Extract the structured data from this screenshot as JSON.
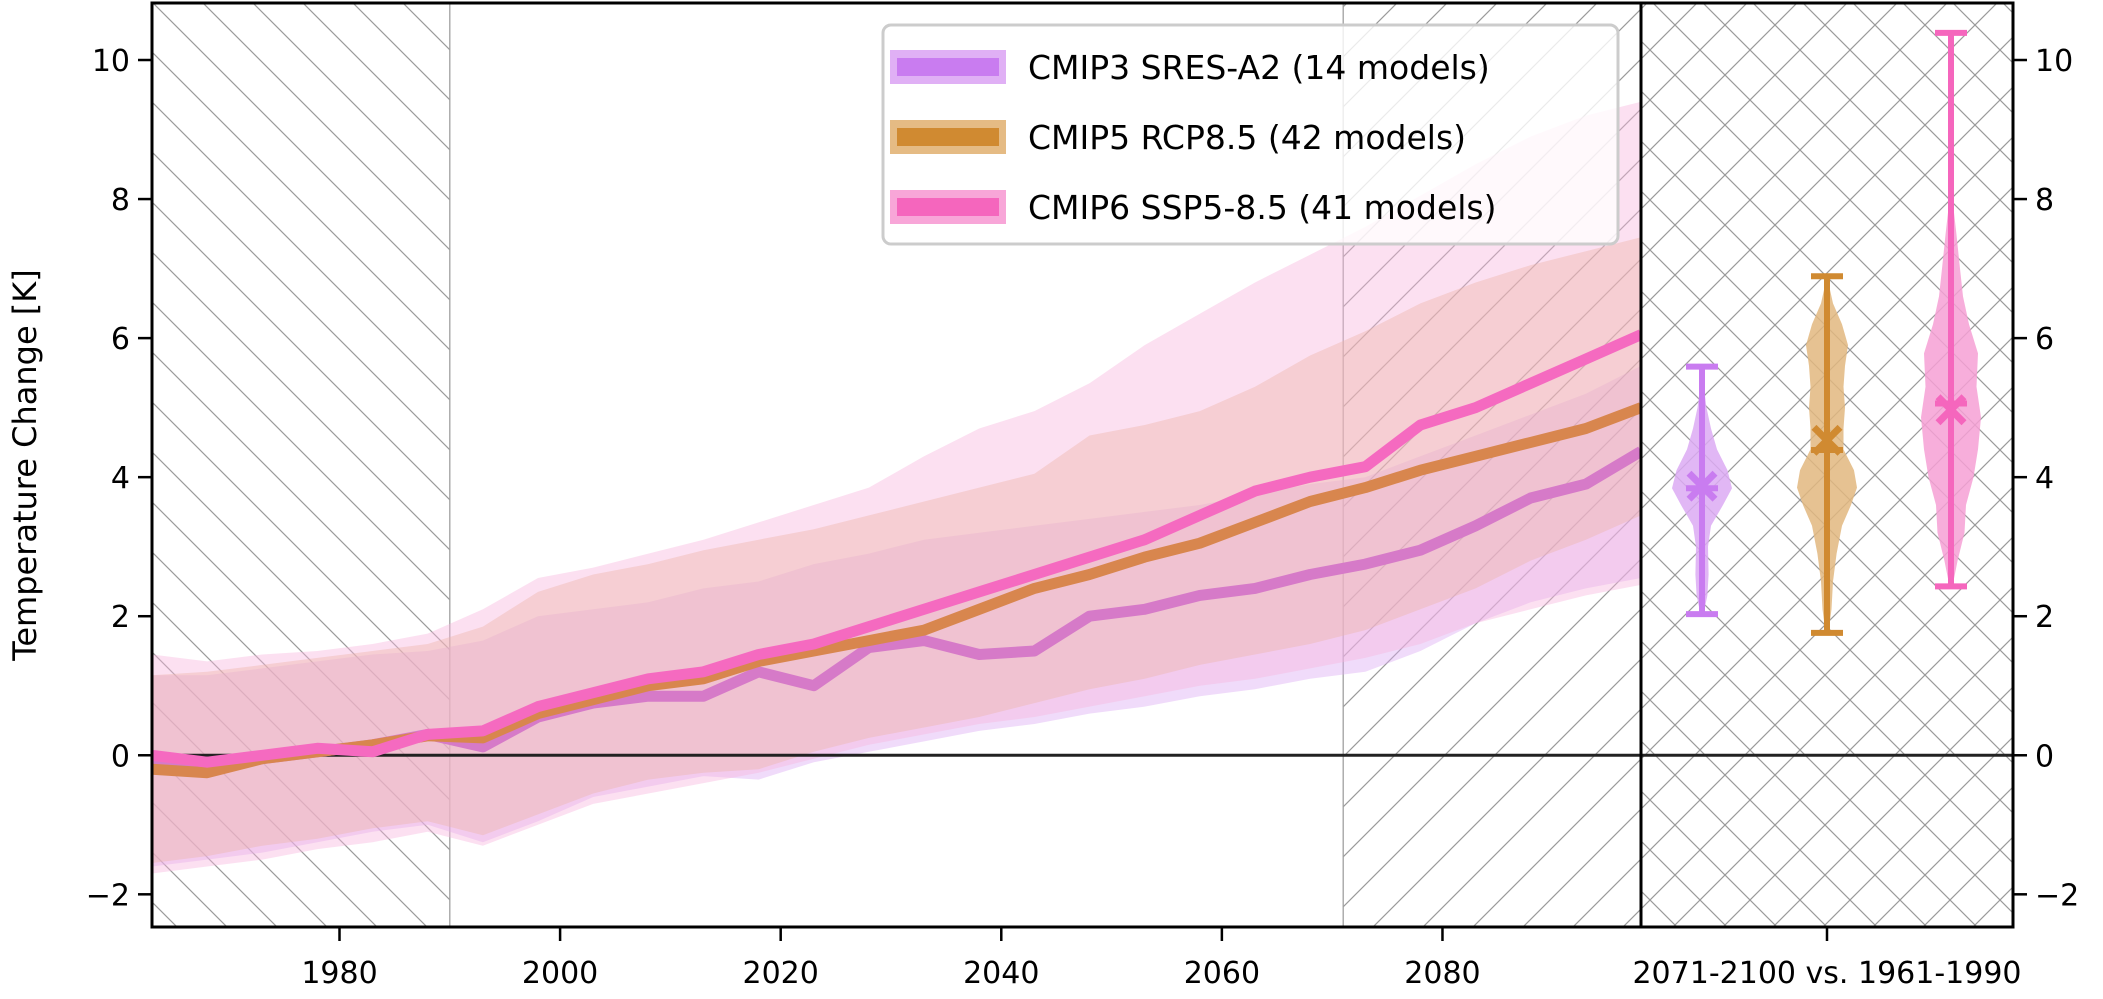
{
  "chart_data": {
    "type": "line",
    "title": "",
    "xlabel": "",
    "ylabel": "Temperature Change [K]",
    "xlim": [
      1963,
      2098
    ],
    "ylim": [
      -2.47,
      10.82
    ],
    "x_ticks": [
      1980,
      2000,
      2020,
      2040,
      2060,
      2080
    ],
    "y_ticks": [
      -2,
      0,
      2,
      4,
      6,
      8,
      10
    ],
    "y_tick_labels": [
      "−2",
      "0",
      "2",
      "4",
      "6",
      "8",
      "10"
    ],
    "zero_line": 0,
    "shaded_periods": [
      {
        "name": "reference-period",
        "start": 1963,
        "end": 1990,
        "hatch": "backslash"
      },
      {
        "name": "future-period",
        "start": 2071,
        "end": 2098,
        "hatch": "slash"
      }
    ],
    "grid": false,
    "legend_position": "top-center",
    "x": [
      1963,
      1968,
      1973,
      1978,
      1983,
      1988,
      1993,
      1998,
      2003,
      2008,
      2013,
      2018,
      2023,
      2028,
      2033,
      2038,
      2043,
      2048,
      2053,
      2058,
      2063,
      2068,
      2073,
      2078,
      2083,
      2088,
      2093,
      2098
    ],
    "series": [
      {
        "name": "CMIP3 SRES-A2 (14 models)",
        "color": "#c97cf0",
        "line_color": "#d67ac8",
        "band_color": "#dcaaf3",
        "mean": [
          -0.15,
          -0.2,
          -0.05,
          0.05,
          0.15,
          0.3,
          0.12,
          0.55,
          0.75,
          0.85,
          0.85,
          1.2,
          1.0,
          1.55,
          1.65,
          1.45,
          1.5,
          2.0,
          2.1,
          2.3,
          2.4,
          2.6,
          2.75,
          2.95,
          3.3,
          3.7,
          3.9,
          4.37
        ],
        "low": [
          -1.6,
          -1.5,
          -1.4,
          -1.25,
          -1.1,
          -1.0,
          -1.25,
          -0.95,
          -0.6,
          -0.45,
          -0.3,
          -0.35,
          -0.1,
          0.05,
          0.2,
          0.35,
          0.45,
          0.6,
          0.7,
          0.85,
          0.95,
          1.1,
          1.2,
          1.5,
          1.9,
          2.2,
          2.4,
          2.55
        ],
        "high": [
          1.15,
          1.15,
          1.25,
          1.35,
          1.45,
          1.5,
          1.65,
          2.0,
          2.1,
          2.2,
          2.4,
          2.5,
          2.75,
          2.9,
          3.1,
          3.2,
          3.3,
          3.4,
          3.5,
          3.6,
          3.75,
          3.9,
          4.0,
          4.3,
          4.6,
          4.9,
          5.2,
          5.6
        ]
      },
      {
        "name": "CMIP5 RCP8.5 (42 models)",
        "color": "#d08a31",
        "line_color": "#d8864e",
        "band_color": "#e4b682",
        "mean": [
          -0.2,
          -0.25,
          -0.05,
          0.05,
          0.15,
          0.28,
          0.25,
          0.6,
          0.8,
          1.0,
          1.1,
          1.35,
          1.5,
          1.65,
          1.8,
          2.1,
          2.4,
          2.6,
          2.85,
          3.05,
          3.35,
          3.65,
          3.85,
          4.1,
          4.3,
          4.5,
          4.7,
          5.0
        ],
        "low": [
          -1.55,
          -1.45,
          -1.3,
          -1.2,
          -1.05,
          -0.95,
          -1.15,
          -0.85,
          -0.55,
          -0.35,
          -0.25,
          -0.2,
          0.05,
          0.25,
          0.4,
          0.55,
          0.75,
          0.95,
          1.1,
          1.3,
          1.45,
          1.6,
          1.8,
          2.1,
          2.4,
          2.8,
          3.1,
          3.45
        ],
        "high": [
          1.15,
          1.2,
          1.3,
          1.4,
          1.5,
          1.6,
          1.85,
          2.35,
          2.6,
          2.75,
          2.95,
          3.1,
          3.25,
          3.45,
          3.65,
          3.85,
          4.05,
          4.6,
          4.75,
          4.95,
          5.3,
          5.75,
          6.1,
          6.5,
          6.8,
          7.05,
          7.25,
          7.45
        ]
      },
      {
        "name": "CMIP6 SSP5-8.5 (41 models)",
        "color": "#f566bd",
        "line_color": "#f56ac0",
        "band_color": "#f9b6de",
        "mean": [
          0.0,
          -0.1,
          0.0,
          0.1,
          0.05,
          0.3,
          0.35,
          0.7,
          0.9,
          1.1,
          1.2,
          1.45,
          1.6,
          1.85,
          2.1,
          2.35,
          2.6,
          2.85,
          3.1,
          3.45,
          3.8,
          4.0,
          4.15,
          4.75,
          5.0,
          5.35,
          5.7,
          6.05
        ],
        "low": [
          -1.7,
          -1.6,
          -1.5,
          -1.35,
          -1.25,
          -1.1,
          -1.3,
          -1.0,
          -0.7,
          -0.55,
          -0.4,
          -0.25,
          -0.05,
          0.15,
          0.3,
          0.45,
          0.55,
          0.7,
          0.85,
          1.0,
          1.1,
          1.25,
          1.4,
          1.6,
          1.9,
          2.1,
          2.3,
          2.45
        ],
        "high": [
          1.45,
          1.35,
          1.45,
          1.5,
          1.6,
          1.75,
          2.1,
          2.55,
          2.7,
          2.9,
          3.1,
          3.35,
          3.6,
          3.85,
          4.3,
          4.7,
          4.95,
          5.35,
          5.9,
          6.35,
          6.8,
          7.2,
          7.6,
          8.05,
          8.5,
          8.9,
          9.2,
          9.4
        ]
      }
    ],
    "violin_panel": {
      "xlabel": "2071-2100 vs. 1961-1990",
      "violins": [
        {
          "name": "CMIP3 SRES-A2",
          "color": "#c97cf0",
          "fill": "#dcaaf3",
          "min": 2.03,
          "max": 5.59,
          "median": 3.84,
          "mean": 3.87,
          "density_y": [
            2.03,
            2.3,
            2.6,
            3.0,
            3.3,
            3.6,
            3.84,
            4.1,
            4.4,
            4.7,
            5.0,
            5.3,
            5.59
          ],
          "density_w": [
            0.05,
            0.18,
            0.22,
            0.2,
            0.3,
            0.7,
            1.0,
            0.85,
            0.5,
            0.3,
            0.15,
            0.06,
            0.0
          ]
        },
        {
          "name": "CMIP5 RCP8.5",
          "color": "#d08a31",
          "fill": "#e2b77f",
          "min": 1.76,
          "max": 6.89,
          "median": 4.39,
          "mean": 4.53,
          "density_y": [
            1.76,
            2.1,
            2.5,
            2.9,
            3.3,
            3.6,
            3.85,
            4.1,
            4.4,
            4.7,
            5.0,
            5.3,
            5.6,
            5.9,
            6.2,
            6.5,
            6.89
          ],
          "density_w": [
            0.05,
            0.15,
            0.2,
            0.32,
            0.5,
            0.8,
            1.0,
            0.9,
            0.55,
            0.55,
            0.6,
            0.55,
            0.6,
            0.7,
            0.5,
            0.2,
            0.0
          ]
        },
        {
          "name": "CMIP6 SSP5-8.5",
          "color": "#f566bd",
          "fill": "#f6a0d5",
          "min": 2.43,
          "max": 10.39,
          "median": 5.06,
          "mean": 4.97,
          "density_y": [
            2.43,
            2.8,
            3.2,
            3.6,
            4.0,
            4.4,
            4.86,
            5.3,
            5.78,
            6.2,
            6.6,
            7.0,
            7.5,
            8.0,
            8.5,
            9.0,
            10.39
          ],
          "density_w": [
            0.05,
            0.22,
            0.45,
            0.5,
            0.75,
            0.9,
            1.0,
            0.85,
            0.9,
            0.6,
            0.4,
            0.3,
            0.18,
            0.05,
            0.02,
            0.0,
            0.0
          ]
        }
      ]
    },
    "legend": [
      {
        "label": "CMIP3 SRES-A2 (14 models)",
        "color": "#c97cf0",
        "fill": "#e0b0f5"
      },
      {
        "label": "CMIP5 RCP8.5 (42 models)",
        "color": "#d08a31",
        "fill": "#e5bb84"
      },
      {
        "label": "CMIP6 SSP5-8.5 (41 models)",
        "color": "#f566bd",
        "fill": "#f8a6d8"
      }
    ]
  }
}
